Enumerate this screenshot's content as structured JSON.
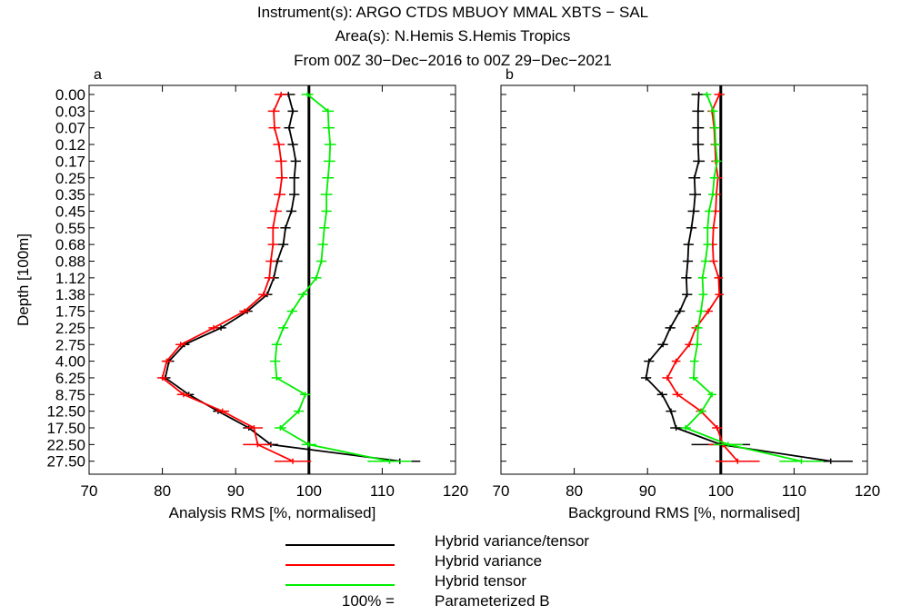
{
  "figure": {
    "title_lines": [
      "Instrument(s): ARGO CTDS MBUOY MMAL XBTS − SAL",
      "Area(s): N.Hemis S.Hemis Tropics",
      "From 00Z 30−Dec−2016 to 00Z 29−Dec−2021"
    ],
    "legend": {
      "entries": [
        {
          "name": "Hybrid variance/tensor",
          "color": "#000000"
        },
        {
          "name": "Hybrid variance",
          "color": "#ff0000"
        },
        {
          "name": "Hybrid tensor",
          "color": "#00ee00"
        }
      ],
      "reference_prefix": "100% =",
      "reference_label": "Parameterized B"
    }
  },
  "chart_data": [
    {
      "type": "line",
      "panel_label": "a",
      "xlabel": "Analysis RMS [%, normalised]",
      "ylabel": "Depth [100m]",
      "xlim": [
        70,
        120
      ],
      "xticks": [
        "70",
        "80",
        "90",
        "100",
        "110",
        "120"
      ],
      "reference_x": 100,
      "depth_labels": [
        "0.00",
        "0.03",
        "0.07",
        "0.12",
        "0.17",
        "0.25",
        "0.35",
        "0.45",
        "0.55",
        "0.68",
        "0.88",
        "1.12",
        "1.38",
        "1.75",
        "2.25",
        "2.75",
        "4.00",
        "6.25",
        "8.75",
        "12.50",
        "17.50",
        "22.50",
        "27.50"
      ],
      "series": [
        {
          "name": "Hybrid variance/tensor",
          "color": "#000000",
          "values": [
            97.2,
            97.8,
            97.3,
            97.8,
            98.2,
            98.0,
            98.0,
            97.6,
            96.8,
            96.5,
            95.7,
            95.2,
            94.3,
            91.6,
            88.0,
            83.0,
            80.9,
            80.4,
            83.6,
            87.6,
            91.8,
            94.8,
            112.4
          ],
          "errors": [
            0.9,
            0.7,
            0.7,
            0.7,
            0.7,
            0.7,
            0.7,
            0.7,
            0.7,
            0.7,
            0.7,
            0.7,
            0.7,
            0.7,
            0.7,
            0.7,
            0.7,
            0.7,
            0.7,
            0.7,
            0.8,
            1.0,
            2.8
          ]
        },
        {
          "name": "Hybrid variance",
          "color": "#ff0000",
          "values": [
            96.2,
            95.2,
            95.3,
            95.9,
            96.2,
            96.3,
            96.0,
            95.5,
            95.1,
            95.1,
            94.8,
            94.6,
            93.8,
            91.2,
            87.0,
            82.5,
            80.6,
            80.0,
            82.9,
            88.2,
            92.5,
            93.0,
            97.8
          ],
          "errors": [
            0.9,
            0.8,
            0.8,
            0.8,
            0.8,
            0.8,
            0.8,
            0.8,
            0.8,
            0.7,
            0.7,
            0.7,
            0.7,
            0.7,
            0.7,
            0.7,
            0.7,
            0.7,
            0.9,
            0.9,
            1.2,
            2.0,
            2.5
          ]
        },
        {
          "name": "Hybrid tensor",
          "color": "#00ee00",
          "values": [
            99.8,
            102.6,
            102.7,
            102.9,
            102.8,
            102.6,
            102.4,
            102.4,
            102.1,
            101.9,
            101.7,
            101.0,
            99.2,
            97.7,
            96.5,
            95.6,
            95.4,
            95.6,
            99.5,
            98.6,
            96.1,
            100.0,
            111.0
          ],
          "errors": [
            0.8,
            0.8,
            0.8,
            0.8,
            0.8,
            0.8,
            0.8,
            0.7,
            0.7,
            0.7,
            0.7,
            0.7,
            0.7,
            0.7,
            0.7,
            0.7,
            0.7,
            0.7,
            0.7,
            0.7,
            0.8,
            1.0,
            3.0
          ]
        }
      ]
    },
    {
      "type": "line",
      "panel_label": "b",
      "xlabel": "Background RMS [%, normalised]",
      "ylabel": "",
      "xlim": [
        70,
        120
      ],
      "xticks": [
        "70",
        "80",
        "90",
        "100",
        "110",
        "120"
      ],
      "reference_x": 100,
      "depth_labels": [
        "0.00",
        "0.03",
        "0.07",
        "0.12",
        "0.17",
        "0.25",
        "0.35",
        "0.45",
        "0.55",
        "0.68",
        "0.88",
        "1.12",
        "1.38",
        "1.75",
        "2.25",
        "2.75",
        "4.00",
        "6.25",
        "8.75",
        "12.50",
        "17.50",
        "22.50",
        "27.50"
      ],
      "series": [
        {
          "name": "Hybrid variance/tensor",
          "color": "#000000",
          "values": [
            97.0,
            96.9,
            96.9,
            96.9,
            97.0,
            96.4,
            96.5,
            96.3,
            96.0,
            95.6,
            95.5,
            95.3,
            95.4,
            94.4,
            93.1,
            92.1,
            90.2,
            89.8,
            92.0,
            93.2,
            93.9,
            100.0,
            115.0
          ],
          "errors": [
            1.0,
            0.8,
            0.8,
            0.8,
            0.8,
            0.8,
            0.8,
            0.8,
            0.7,
            0.7,
            0.7,
            0.7,
            0.7,
            0.7,
            0.7,
            0.7,
            0.7,
            0.7,
            0.7,
            0.7,
            0.8,
            4.0,
            3.0
          ]
        },
        {
          "name": "Hybrid variance",
          "color": "#ff0000",
          "values": [
            99.8,
            98.8,
            99.1,
            99.2,
            99.3,
            99.6,
            99.4,
            99.3,
            99.0,
            98.9,
            99.0,
            99.7,
            99.8,
            98.3,
            96.6,
            95.7,
            93.9,
            92.7,
            94.1,
            97.3,
            99.5,
            100.3,
            102.3
          ],
          "errors": [
            0.7,
            0.6,
            0.6,
            0.6,
            0.6,
            0.6,
            0.6,
            0.6,
            0.6,
            0.6,
            0.6,
            0.6,
            0.6,
            0.6,
            0.6,
            0.6,
            0.6,
            0.7,
            0.7,
            0.7,
            0.7,
            2.0,
            3.0
          ]
        },
        {
          "name": "Hybrid tensor",
          "color": "#00ee00",
          "values": [
            98.1,
            99.0,
            99.2,
            99.3,
            99.5,
            99.1,
            98.9,
            98.4,
            98.2,
            98.2,
            97.9,
            97.5,
            97.6,
            97.3,
            96.9,
            96.8,
            96.4,
            96.3,
            98.8,
            97.4,
            95.2,
            101.0,
            111.0
          ],
          "errors": [
            0.6,
            0.6,
            0.6,
            0.6,
            0.6,
            0.6,
            0.6,
            0.6,
            0.6,
            0.6,
            0.6,
            0.6,
            0.6,
            0.6,
            0.6,
            0.6,
            0.6,
            0.6,
            0.6,
            0.6,
            0.7,
            2.0,
            3.0
          ]
        }
      ]
    }
  ]
}
